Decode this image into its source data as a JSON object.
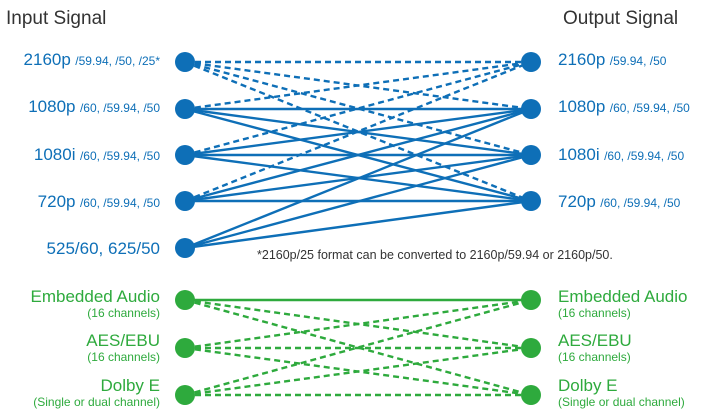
{
  "headers": {
    "input": "Input Signal",
    "output": "Output Signal"
  },
  "colors": {
    "video": "#0e6fb7",
    "audio": "#2eaa3d",
    "text": "#333333"
  },
  "input_video": [
    {
      "main": "2160p",
      "sub": "/59.94, /50, /25*"
    },
    {
      "main": "1080p",
      "sub": "/60, /59.94, /50"
    },
    {
      "main": "1080i",
      "sub": "/60, /59.94, /50"
    },
    {
      "main": "720p",
      "sub": "/60, /59.94, /50"
    },
    {
      "main": "525/60, 625/50",
      "sub": ""
    }
  ],
  "output_video": [
    {
      "main": "2160p",
      "sub": "/59.94, /50"
    },
    {
      "main": "1080p",
      "sub": "/60, /59.94, /50"
    },
    {
      "main": "1080i",
      "sub": "/60, /59.94, /50"
    },
    {
      "main": "720p",
      "sub": "/60, /59.94, /50"
    }
  ],
  "audio": [
    {
      "main": "Embedded Audio",
      "sub": "(16 channels)"
    },
    {
      "main": "AES/EBU",
      "sub": "(16 channels)"
    },
    {
      "main": "Dolby E",
      "sub": "(Single or dual channel)"
    }
  ],
  "note": "*2160p/25 format can be converted to 2160p/59.94 or 2160p/50.",
  "video_links": [
    {
      "from": 0,
      "to": 0,
      "style": "dashed"
    },
    {
      "from": 0,
      "to": 1,
      "style": "dashed"
    },
    {
      "from": 0,
      "to": 2,
      "style": "dashed"
    },
    {
      "from": 0,
      "to": 3,
      "style": "dashed"
    },
    {
      "from": 1,
      "to": 0,
      "style": "dashed"
    },
    {
      "from": 1,
      "to": 1,
      "style": "solid"
    },
    {
      "from": 1,
      "to": 2,
      "style": "solid"
    },
    {
      "from": 1,
      "to": 3,
      "style": "solid"
    },
    {
      "from": 2,
      "to": 0,
      "style": "dashed"
    },
    {
      "from": 2,
      "to": 1,
      "style": "solid"
    },
    {
      "from": 2,
      "to": 2,
      "style": "solid"
    },
    {
      "from": 2,
      "to": 3,
      "style": "solid"
    },
    {
      "from": 3,
      "to": 0,
      "style": "dashed"
    },
    {
      "from": 3,
      "to": 1,
      "style": "solid"
    },
    {
      "from": 3,
      "to": 2,
      "style": "solid"
    },
    {
      "from": 3,
      "to": 3,
      "style": "solid"
    },
    {
      "from": 4,
      "to": 1,
      "style": "solid"
    },
    {
      "from": 4,
      "to": 2,
      "style": "solid"
    },
    {
      "from": 4,
      "to": 3,
      "style": "solid"
    }
  ],
  "audio_links": [
    {
      "from": 0,
      "to": 0,
      "style": "solid"
    },
    {
      "from": 0,
      "to": 1,
      "style": "dashed"
    },
    {
      "from": 0,
      "to": 2,
      "style": "dashed"
    },
    {
      "from": 1,
      "to": 0,
      "style": "dashed"
    },
    {
      "from": 1,
      "to": 1,
      "style": "dashed"
    },
    {
      "from": 1,
      "to": 2,
      "style": "dashed"
    },
    {
      "from": 2,
      "to": 0,
      "style": "dashed"
    },
    {
      "from": 2,
      "to": 1,
      "style": "dashed"
    },
    {
      "from": 2,
      "to": 2,
      "style": "dashed"
    }
  ]
}
